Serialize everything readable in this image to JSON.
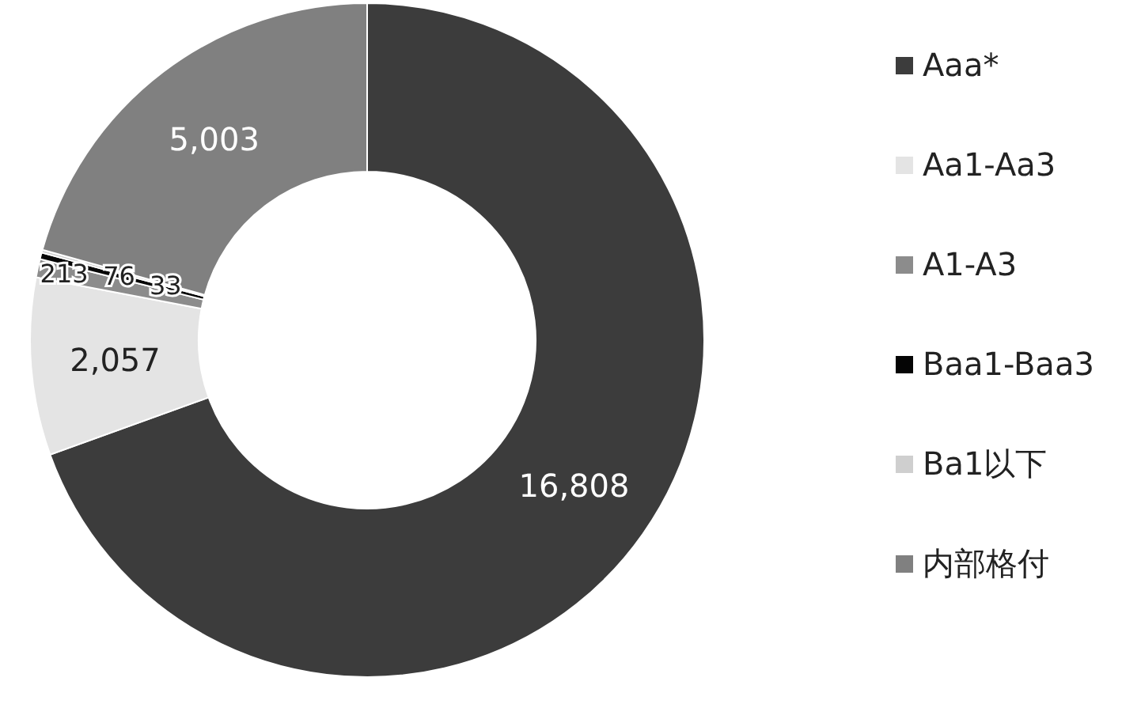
{
  "chart_data": {
    "type": "donut",
    "categories": [
      "Aaa*",
      "Aa1-Aa3",
      "A1-A3",
      "Baa1-Baa3",
      "Ba1以下",
      "内部格付"
    ],
    "values": [
      16808,
      2057,
      213,
      76,
      33,
      5003
    ],
    "colors": [
      "#3c3c3c",
      "#e4e4e4",
      "#8c8c8c",
      "#050505",
      "#cfcfcf",
      "#808080"
    ],
    "value_labels": [
      "16,808",
      "2,057",
      "213",
      "76",
      "33",
      "5,003"
    ],
    "legend": "right"
  }
}
